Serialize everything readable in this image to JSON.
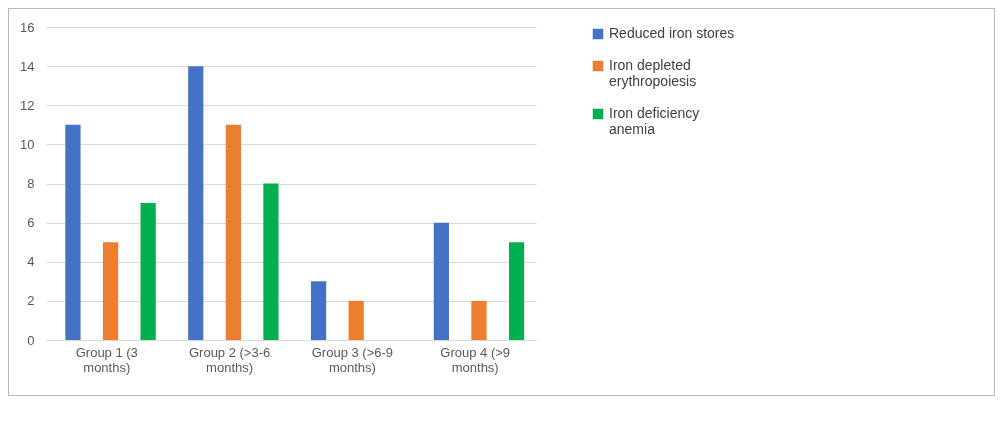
{
  "chart_data": {
    "type": "bar",
    "categories": [
      "Group 1 (3 months)",
      "Group 2 (>3-6 months)",
      "Group 3 (>6-9 months)",
      "Group 4 (>9 months)"
    ],
    "series": [
      {
        "name": "Reduced iron stores",
        "color": "#4472c4",
        "values": [
          11,
          14,
          3,
          6
        ]
      },
      {
        "name": "Iron depleted erythropoiesis",
        "color": "#ed7d31",
        "values": [
          5,
          11,
          2,
          2
        ]
      },
      {
        "name": "Iron deficiency anemia",
        "color": "#00b050",
        "values": [
          7,
          8,
          0,
          5
        ]
      }
    ],
    "ylim": [
      0,
      16
    ],
    "yticks": [
      0,
      2,
      4,
      6,
      8,
      10,
      12,
      14,
      16
    ],
    "grid": "y",
    "legend": "right"
  }
}
